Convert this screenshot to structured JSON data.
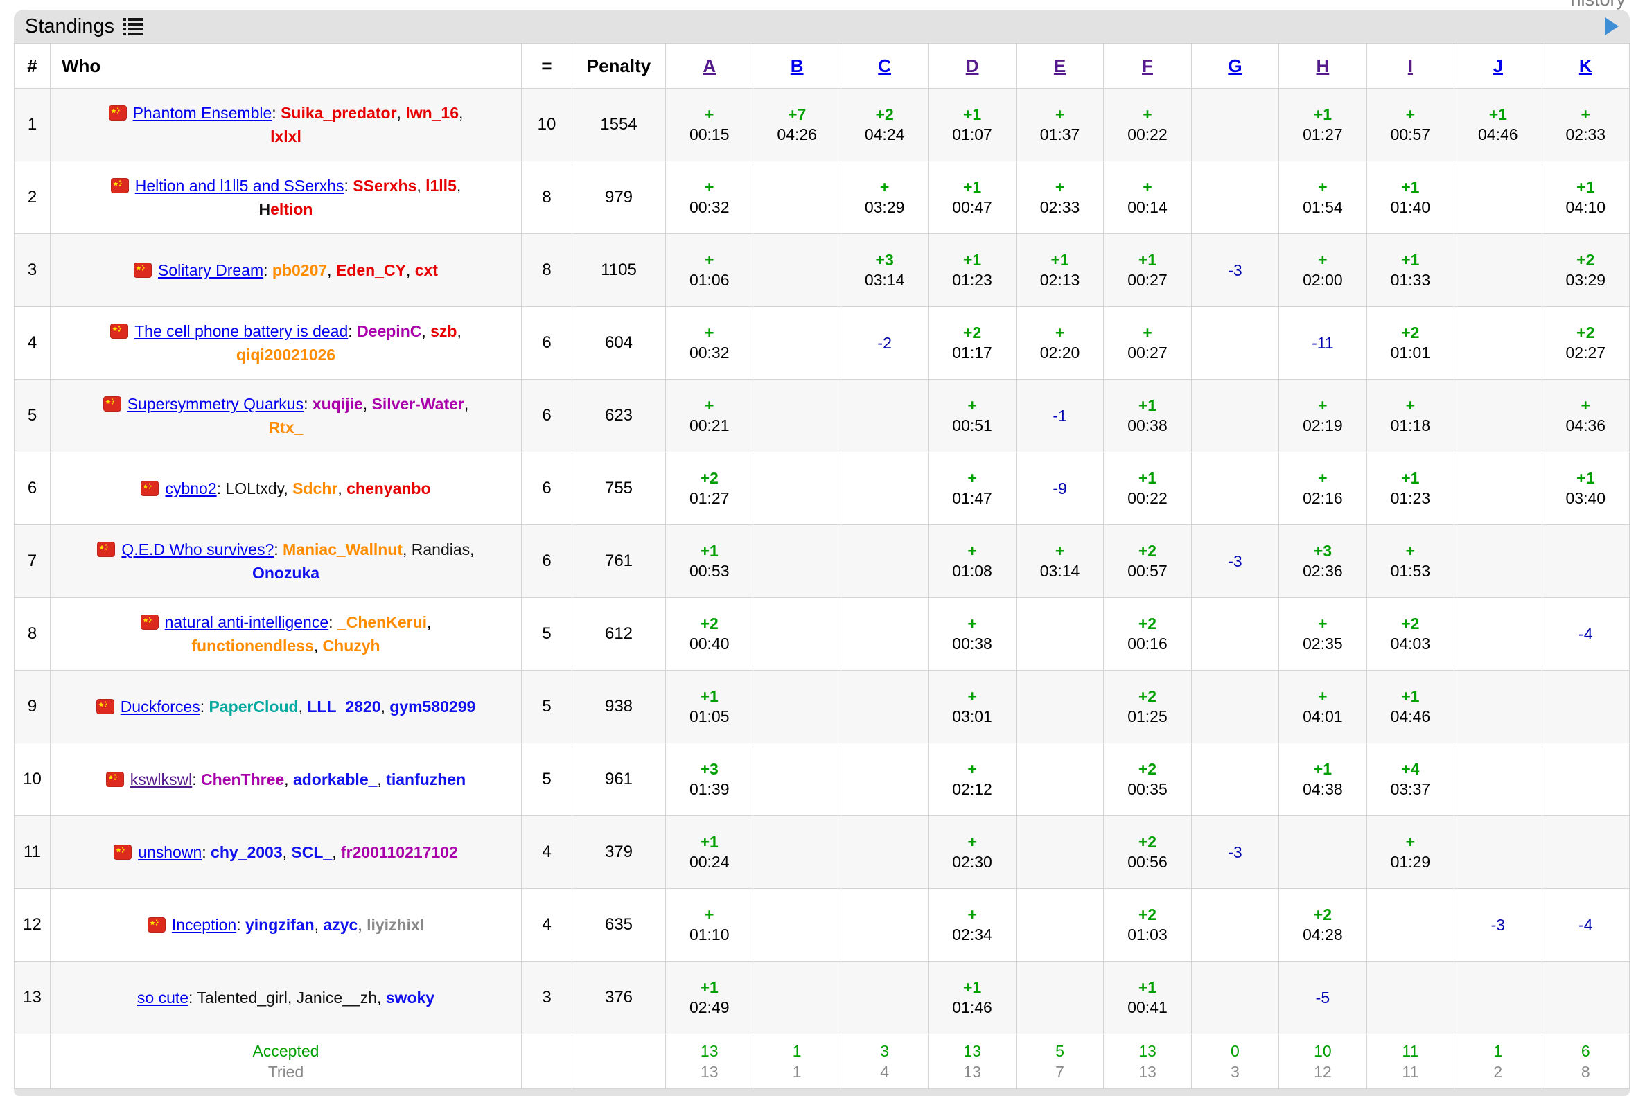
{
  "page": {
    "history_label": "history"
  },
  "caption": {
    "title": "Standings"
  },
  "table": {
    "headers": {
      "rank": "#",
      "who": "Who",
      "solved": "=",
      "penalty": "Penalty"
    },
    "problems": [
      {
        "label": "A",
        "visited": true
      },
      {
        "label": "B",
        "visited": false
      },
      {
        "label": "C",
        "visited": false
      },
      {
        "label": "D",
        "visited": true
      },
      {
        "label": "E",
        "visited": true
      },
      {
        "label": "F",
        "visited": true
      },
      {
        "label": "G",
        "visited": false
      },
      {
        "label": "H",
        "visited": true
      },
      {
        "label": "I",
        "visited": true
      },
      {
        "label": "J",
        "visited": false
      },
      {
        "label": "K",
        "visited": false
      }
    ],
    "rows": [
      {
        "rank": "1",
        "flag": true,
        "team": "Phantom Ensemble",
        "team_visited": false,
        "members": [
          {
            "name": "Suika_predator",
            "color": "red"
          },
          {
            "name": "lwn_16",
            "color": "red"
          },
          {
            "name": "lxlxl",
            "color": "red",
            "br": true
          }
        ],
        "solved": "10",
        "penalty": "1554",
        "cells": [
          {
            "v": "+",
            "t": "00:15"
          },
          {
            "v": "+7",
            "t": "04:26"
          },
          {
            "v": "+2",
            "t": "04:24"
          },
          {
            "v": "+1",
            "t": "01:07"
          },
          {
            "v": "+",
            "t": "01:37"
          },
          {
            "v": "+",
            "t": "00:22"
          },
          null,
          {
            "v": "+1",
            "t": "01:27"
          },
          {
            "v": "+",
            "t": "00:57"
          },
          {
            "v": "+1",
            "t": "04:46"
          },
          {
            "v": "+",
            "t": "02:33"
          }
        ]
      },
      {
        "rank": "2",
        "flag": true,
        "team": "Heltion and l1ll5 and SSerxhs",
        "team_visited": false,
        "members": [
          {
            "name": "SSerxhs",
            "color": "red"
          },
          {
            "name": "l1ll5",
            "color": "red"
          },
          {
            "name": "Heltion",
            "color": "legendary",
            "br": true
          }
        ],
        "solved": "8",
        "penalty": "979",
        "cells": [
          {
            "v": "+",
            "t": "00:32"
          },
          null,
          {
            "v": "+",
            "t": "03:29"
          },
          {
            "v": "+1",
            "t": "00:47"
          },
          {
            "v": "+",
            "t": "02:33"
          },
          {
            "v": "+",
            "t": "00:14"
          },
          null,
          {
            "v": "+",
            "t": "01:54"
          },
          {
            "v": "+1",
            "t": "01:40"
          },
          null,
          {
            "v": "+1",
            "t": "04:10"
          }
        ]
      },
      {
        "rank": "3",
        "flag": true,
        "team": "Solitary Dream",
        "team_visited": false,
        "members": [
          {
            "name": "pb0207",
            "color": "orange"
          },
          {
            "name": "Eden_CY",
            "color": "red"
          },
          {
            "name": "cxt",
            "color": "red"
          }
        ],
        "solved": "8",
        "penalty": "1105",
        "cells": [
          {
            "v": "+",
            "t": "01:06"
          },
          null,
          {
            "v": "+3",
            "t": "03:14"
          },
          {
            "v": "+1",
            "t": "01:23"
          },
          {
            "v": "+1",
            "t": "02:13"
          },
          {
            "v": "+1",
            "t": "00:27"
          },
          {
            "r": "-3"
          },
          {
            "v": "+",
            "t": "02:00"
          },
          {
            "v": "+1",
            "t": "01:33"
          },
          null,
          {
            "v": "+2",
            "t": "03:29"
          }
        ]
      },
      {
        "rank": "4",
        "flag": true,
        "team": "The cell phone battery is dead",
        "team_visited": false,
        "members": [
          {
            "name": "DeepinC",
            "color": "violet"
          },
          {
            "name": "szb",
            "color": "red"
          },
          {
            "name": "qiqi20021026",
            "color": "orange",
            "br": true
          }
        ],
        "solved": "6",
        "penalty": "604",
        "cells": [
          {
            "v": "+",
            "t": "00:32"
          },
          null,
          {
            "r": "-2"
          },
          {
            "v": "+2",
            "t": "01:17"
          },
          {
            "v": "+",
            "t": "02:20"
          },
          {
            "v": "+",
            "t": "00:27"
          },
          null,
          {
            "r": "-11"
          },
          {
            "v": "+2",
            "t": "01:01"
          },
          null,
          {
            "v": "+2",
            "t": "02:27"
          }
        ]
      },
      {
        "rank": "5",
        "flag": true,
        "team": "Supersymmetry Quarkus",
        "team_visited": false,
        "members": [
          {
            "name": "xuqijie",
            "color": "violet"
          },
          {
            "name": "Silver-Water",
            "color": "violet"
          },
          {
            "name": "Rtx_",
            "color": "orange",
            "br": true
          }
        ],
        "solved": "6",
        "penalty": "623",
        "cells": [
          {
            "v": "+",
            "t": "00:21"
          },
          null,
          null,
          {
            "v": "+",
            "t": "00:51"
          },
          {
            "r": "-1"
          },
          {
            "v": "+1",
            "t": "00:38"
          },
          null,
          {
            "v": "+",
            "t": "02:19"
          },
          {
            "v": "+",
            "t": "01:18"
          },
          null,
          {
            "v": "+",
            "t": "04:36"
          }
        ]
      },
      {
        "rank": "6",
        "flag": true,
        "team": "cybno2",
        "team_visited": false,
        "members": [
          {
            "name": "LOLtxdy",
            "color": "black"
          },
          {
            "name": "Sdchr",
            "color": "orange"
          },
          {
            "name": "chenyanbo",
            "color": "red"
          }
        ],
        "solved": "6",
        "penalty": "755",
        "cells": [
          {
            "v": "+2",
            "t": "01:27"
          },
          null,
          null,
          {
            "v": "+",
            "t": "01:47"
          },
          {
            "r": "-9"
          },
          {
            "v": "+1",
            "t": "00:22"
          },
          null,
          {
            "v": "+",
            "t": "02:16"
          },
          {
            "v": "+1",
            "t": "01:23"
          },
          null,
          {
            "v": "+1",
            "t": "03:40"
          }
        ]
      },
      {
        "rank": "7",
        "flag": true,
        "team": "Q.E.D Who survives?",
        "team_visited": false,
        "members": [
          {
            "name": "Maniac_Wallnut",
            "color": "orange"
          },
          {
            "name": "Randias",
            "color": "black"
          },
          {
            "name": "Onozuka",
            "color": "blue",
            "br": true
          }
        ],
        "solved": "6",
        "penalty": "761",
        "cells": [
          {
            "v": "+1",
            "t": "00:53"
          },
          null,
          null,
          {
            "v": "+",
            "t": "01:08"
          },
          {
            "v": "+",
            "t": "03:14"
          },
          {
            "v": "+2",
            "t": "00:57"
          },
          {
            "r": "-3"
          },
          {
            "v": "+3",
            "t": "02:36"
          },
          {
            "v": "+",
            "t": "01:53"
          },
          null,
          null
        ]
      },
      {
        "rank": "8",
        "flag": true,
        "team": "natural anti-intelligence",
        "team_visited": false,
        "members": [
          {
            "name": "_ChenKerui",
            "color": "orange"
          },
          {
            "name": "functionendless",
            "color": "orange",
            "br": true
          },
          {
            "name": "Chuzyh",
            "color": "orange"
          }
        ],
        "solved": "5",
        "penalty": "612",
        "cells": [
          {
            "v": "+2",
            "t": "00:40"
          },
          null,
          null,
          {
            "v": "+",
            "t": "00:38"
          },
          null,
          {
            "v": "+2",
            "t": "00:16"
          },
          null,
          {
            "v": "+",
            "t": "02:35"
          },
          {
            "v": "+2",
            "t": "04:03"
          },
          null,
          {
            "r": "-4"
          }
        ]
      },
      {
        "rank": "9",
        "flag": true,
        "team": "Duckforces",
        "team_visited": false,
        "members": [
          {
            "name": "PaperCloud",
            "color": "cyan"
          },
          {
            "name": "LLL_2820",
            "color": "blue"
          },
          {
            "name": "gym580299",
            "color": "blue"
          }
        ],
        "solved": "5",
        "penalty": "938",
        "cells": [
          {
            "v": "+1",
            "t": "01:05"
          },
          null,
          null,
          {
            "v": "+",
            "t": "03:01"
          },
          null,
          {
            "v": "+2",
            "t": "01:25"
          },
          null,
          {
            "v": "+",
            "t": "04:01"
          },
          {
            "v": "+1",
            "t": "04:46"
          },
          null,
          null
        ]
      },
      {
        "rank": "10",
        "flag": true,
        "team": "kswlkswl",
        "team_visited": true,
        "members": [
          {
            "name": "ChenThree",
            "color": "violet"
          },
          {
            "name": "adorkable_",
            "color": "blue"
          },
          {
            "name": "tianfuzhen",
            "color": "blue"
          }
        ],
        "solved": "5",
        "penalty": "961",
        "cells": [
          {
            "v": "+3",
            "t": "01:39"
          },
          null,
          null,
          {
            "v": "+",
            "t": "02:12"
          },
          null,
          {
            "v": "+2",
            "t": "00:35"
          },
          null,
          {
            "v": "+1",
            "t": "04:38"
          },
          {
            "v": "+4",
            "t": "03:37"
          },
          null,
          null
        ]
      },
      {
        "rank": "11",
        "flag": true,
        "team": "unshown",
        "team_visited": false,
        "members": [
          {
            "name": "chy_2003",
            "color": "blue"
          },
          {
            "name": "SCL_",
            "color": "blue"
          },
          {
            "name": "fr200110217102",
            "color": "violet"
          }
        ],
        "solved": "4",
        "penalty": "379",
        "cells": [
          {
            "v": "+1",
            "t": "00:24"
          },
          null,
          null,
          {
            "v": "+",
            "t": "02:30"
          },
          null,
          {
            "v": "+2",
            "t": "00:56"
          },
          {
            "r": "-3"
          },
          null,
          {
            "v": "+",
            "t": "01:29"
          },
          null,
          null
        ]
      },
      {
        "rank": "12",
        "flag": true,
        "team": "Inception",
        "team_visited": false,
        "members": [
          {
            "name": "yingzifan",
            "color": "blue"
          },
          {
            "name": "azyc",
            "color": "blue"
          },
          {
            "name": "liyizhixl",
            "color": "gray"
          }
        ],
        "solved": "4",
        "penalty": "635",
        "cells": [
          {
            "v": "+",
            "t": "01:10"
          },
          null,
          null,
          {
            "v": "+",
            "t": "02:34"
          },
          null,
          {
            "v": "+2",
            "t": "01:03"
          },
          null,
          {
            "v": "+2",
            "t": "04:28"
          },
          null,
          {
            "r": "-3"
          },
          {
            "r": "-4"
          }
        ]
      },
      {
        "rank": "13",
        "flag": false,
        "team": "so cute",
        "team_visited": false,
        "members": [
          {
            "name": "Talented_girl",
            "color": "black"
          },
          {
            "name": "Janice__zh",
            "color": "black"
          },
          {
            "name": "swoky",
            "color": "blue"
          }
        ],
        "solved": "3",
        "penalty": "376",
        "cells": [
          {
            "v": "+1",
            "t": "02:49"
          },
          null,
          null,
          {
            "v": "+1",
            "t": "01:46"
          },
          null,
          {
            "v": "+1",
            "t": "00:41"
          },
          null,
          {
            "r": "-5"
          },
          null,
          null,
          null
        ]
      }
    ],
    "footer": {
      "accepted_label": "Accepted",
      "tried_label": "Tried",
      "accepted": [
        "13",
        "1",
        "3",
        "13",
        "5",
        "13",
        "0",
        "10",
        "11",
        "1",
        "6"
      ],
      "tried": [
        "13",
        "1",
        "4",
        "13",
        "7",
        "13",
        "3",
        "12",
        "11",
        "2",
        "8"
      ]
    }
  }
}
